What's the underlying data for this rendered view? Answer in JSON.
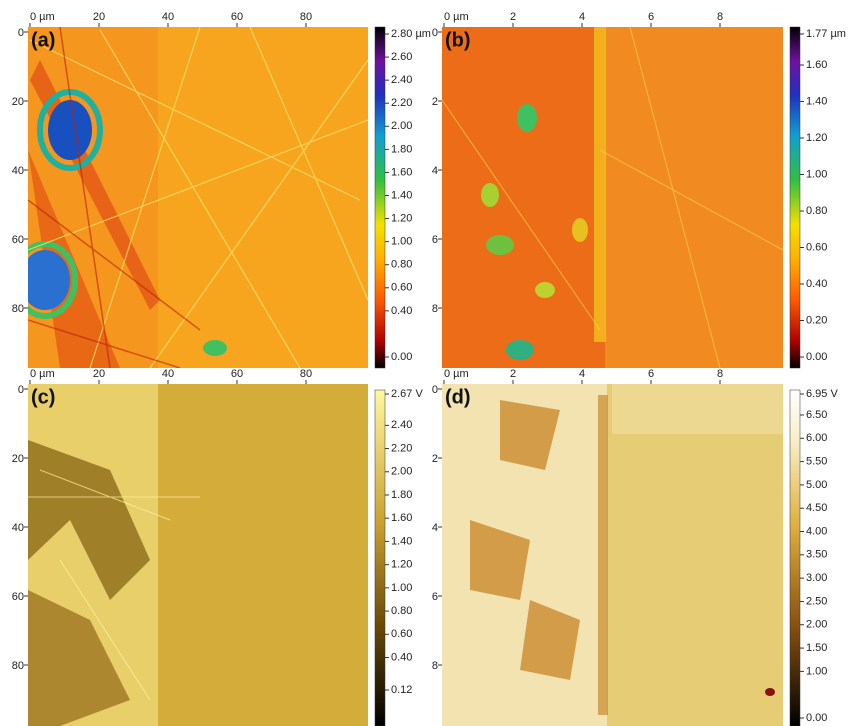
{
  "panels": [
    {
      "label": "(a)",
      "x_ticks": [
        "0 µm",
        "20",
        "40",
        "60",
        "80"
      ],
      "y_ticks": [
        "0",
        "20",
        "40",
        "60",
        "80"
      ],
      "colorbar_ticks": [
        "2.80 µm",
        "2.60",
        "2.40",
        "2.20",
        "2.00",
        "1.80",
        "1.60",
        "1.40",
        "1.20",
        "1.00",
        "0.80",
        "0.60",
        "0.40",
        "0.00"
      ]
    },
    {
      "label": "(b)",
      "x_ticks": [
        "0 µm",
        "2",
        "4",
        "6",
        "8"
      ],
      "y_ticks": [
        "0",
        "2",
        "4",
        "6",
        "8"
      ],
      "colorbar_ticks": [
        "1.77 µm",
        "1.60",
        "1.40",
        "1.20",
        "1.00",
        "0.80",
        "0.60",
        "0.40",
        "0.20",
        "0.00"
      ]
    },
    {
      "label": "(c)",
      "x_ticks": [
        "0 µm",
        "20",
        "40",
        "60",
        "80"
      ],
      "y_ticks": [
        "0",
        "20",
        "40",
        "60",
        "80"
      ],
      "colorbar_ticks": [
        "2.67 V",
        "2.40",
        "2.20",
        "2.00",
        "1.80",
        "1.60",
        "1.40",
        "1.20",
        "1.00",
        "0.80",
        "0.60",
        "0.40",
        "0.12"
      ]
    },
    {
      "label": "(d)",
      "x_ticks": [
        "0 µm",
        "2",
        "4",
        "6",
        "8"
      ],
      "y_ticks": [
        "0",
        "2",
        "4",
        "6",
        "8"
      ],
      "colorbar_ticks": [
        "6.95 V",
        "6.50",
        "6.00",
        "5.50",
        "5.00",
        "4.50",
        "4.00",
        "3.50",
        "3.00",
        "2.50",
        "2.00",
        "1.50",
        "1.00",
        "0.00"
      ]
    }
  ]
}
